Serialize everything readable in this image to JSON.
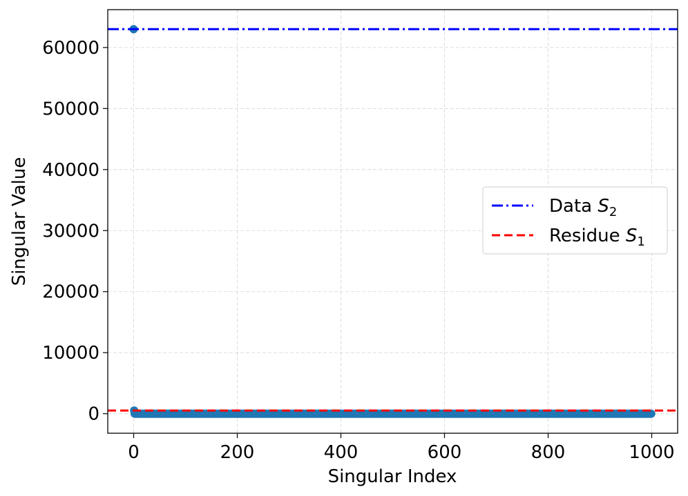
{
  "chart_data": {
    "type": "scatter",
    "xlabel": "Singular Index",
    "ylabel": "Singular Value",
    "xlim": [
      -50,
      1050
    ],
    "ylim": [
      -3200,
      66200
    ],
    "x_ticks": [
      0,
      200,
      400,
      600,
      800,
      1000
    ],
    "x_tick_labels": [
      "0",
      "200",
      "400",
      "600",
      "800",
      "1000"
    ],
    "y_ticks": [
      0,
      10000,
      20000,
      30000,
      40000,
      50000,
      60000
    ],
    "y_tick_labels": [
      "0",
      "10000",
      "20000",
      "30000",
      "40000",
      "50000",
      "60000"
    ],
    "grid": true,
    "legend_placement": "center-right",
    "series": [
      {
        "type": "scatter",
        "color": "#1f77b4",
        "points": [
          [
            0,
            63000
          ],
          [
            1,
            520
          ]
        ],
        "tail": {
          "x_start": 2,
          "x_end": 999,
          "value": 0
        }
      }
    ],
    "reference_lines": [
      {
        "name_text": "Data ",
        "name_symbol": "S",
        "name_sub": "2",
        "value": 63000,
        "color": "#0000ff",
        "style": "dashdot"
      },
      {
        "name_text": "Residue ",
        "name_symbol": "S",
        "name_sub": "1",
        "value": 520,
        "color": "#ff0000",
        "style": "dashed"
      }
    ]
  }
}
